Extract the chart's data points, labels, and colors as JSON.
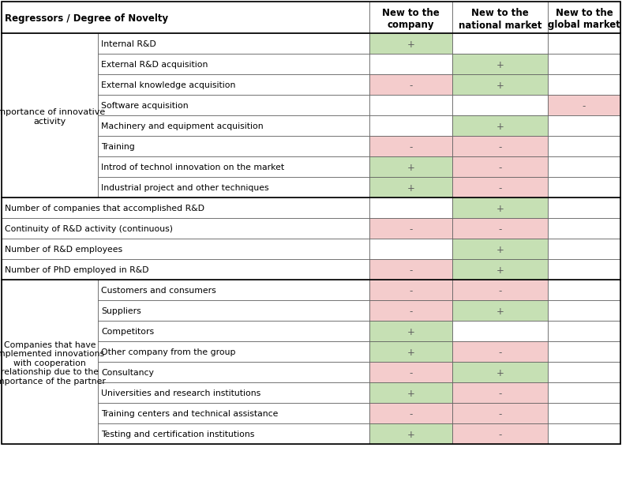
{
  "header": [
    "Regressors / Degree of Novelty",
    "New to the\ncompany",
    "New to the\nnational market",
    "New to the\nglobal market"
  ],
  "green": "#c6e0b4",
  "pink": "#f4cccc",
  "white": "#ffffff",
  "group1_label": "Importance of innovative\nactivity",
  "group1_rows": [
    {
      "label": "Internal R&D",
      "c1": "+",
      "c1c": "green",
      "c2": "",
      "c2c": "white",
      "c3": "",
      "c3c": "white"
    },
    {
      "label": "External R&D acquisition",
      "c1": "",
      "c1c": "white",
      "c2": "+",
      "c2c": "green",
      "c3": "",
      "c3c": "white"
    },
    {
      "label": "External knowledge acquisition",
      "c1": "-",
      "c1c": "pink",
      "c2": "+",
      "c2c": "green",
      "c3": "",
      "c3c": "white"
    },
    {
      "label": "Software acquisition",
      "c1": "",
      "c1c": "white",
      "c2": "",
      "c2c": "white",
      "c3": "-",
      "c3c": "pink"
    },
    {
      "label": "Machinery and equipment acquisition",
      "c1": "",
      "c1c": "white",
      "c2": "+",
      "c2c": "green",
      "c3": "",
      "c3c": "white"
    },
    {
      "label": "Training",
      "c1": "-",
      "c1c": "pink",
      "c2": "-",
      "c2c": "pink",
      "c3": "",
      "c3c": "white"
    },
    {
      "label": "Introd of technol innovation on the market",
      "c1": "+",
      "c1c": "green",
      "c2": "-",
      "c2c": "pink",
      "c3": "",
      "c3c": "white"
    },
    {
      "label": "Industrial project and other techniques",
      "c1": "+",
      "c1c": "green",
      "c2": "-",
      "c2c": "pink",
      "c3": "",
      "c3c": "white"
    }
  ],
  "single_rows": [
    {
      "label": "Number of companies that accomplished R&D",
      "c1": "",
      "c1c": "white",
      "c2": "+",
      "c2c": "green",
      "c3": "",
      "c3c": "white"
    },
    {
      "label": "Continuity of R&D activity (continuous)",
      "c1": "-",
      "c1c": "pink",
      "c2": "-",
      "c2c": "pink",
      "c3": "",
      "c3c": "white"
    },
    {
      "label": "Number of R&D employees",
      "c1": "",
      "c1c": "white",
      "c2": "+",
      "c2c": "green",
      "c3": "",
      "c3c": "white"
    },
    {
      "label": "Number of PhD employed in R&D",
      "c1": "-",
      "c1c": "pink",
      "c2": "+",
      "c2c": "green",
      "c3": "",
      "c3c": "white"
    }
  ],
  "group2_label": "Companies that have\nimplemented innovations\nwith cooperation\nrelationship due to the\nimportance of the partner",
  "group2_rows": [
    {
      "label": "Customers and consumers",
      "c1": "-",
      "c1c": "pink",
      "c2": "-",
      "c2c": "pink",
      "c3": "",
      "c3c": "white"
    },
    {
      "label": "Suppliers",
      "c1": "-",
      "c1c": "pink",
      "c2": "+",
      "c2c": "green",
      "c3": "",
      "c3c": "white"
    },
    {
      "label": "Competitors",
      "c1": "+",
      "c1c": "green",
      "c2": "",
      "c2c": "white",
      "c3": "",
      "c3c": "white"
    },
    {
      "label": "Other company from the group",
      "c1": "+",
      "c1c": "green",
      "c2": "-",
      "c2c": "pink",
      "c3": "",
      "c3c": "white"
    },
    {
      "label": "Consultancy",
      "c1": "-",
      "c1c": "pink",
      "c2": "+",
      "c2c": "green",
      "c3": "",
      "c3c": "white"
    },
    {
      "label": "Universities and research institutions",
      "c1": "+",
      "c1c": "green",
      "c2": "-",
      "c2c": "pink",
      "c3": "",
      "c3c": "white"
    },
    {
      "label": "Training centers and technical assistance",
      "c1": "-",
      "c1c": "pink",
      "c2": "-",
      "c2c": "pink",
      "c3": "",
      "c3c": "white"
    },
    {
      "label": "Testing and certification institutions",
      "c1": "+",
      "c1c": "green",
      "c2": "-",
      "c2c": "pink",
      "c3": "",
      "c3c": "white"
    }
  ]
}
